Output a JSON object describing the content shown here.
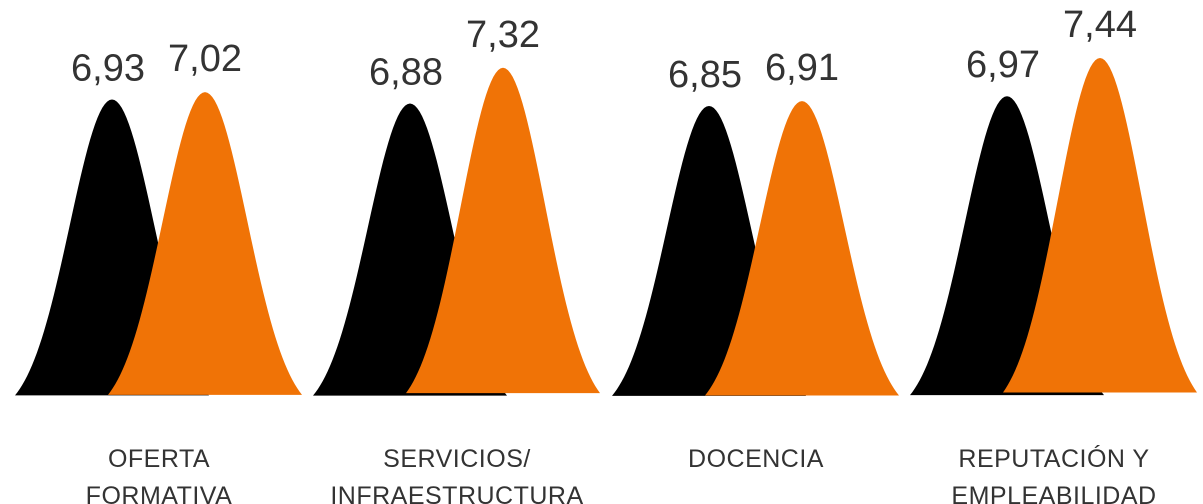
{
  "colors": {
    "series_a": "#000000",
    "series_b": "#F07306",
    "text": "#333333"
  },
  "chart_data": {
    "type": "area",
    "title": "",
    "xlabel": "",
    "ylabel": "",
    "grid": false,
    "legend": "none",
    "categories": [
      {
        "lines": [
          "OFERTA",
          "FORMATIVA"
        ]
      },
      {
        "lines": [
          "SERVICIOS/",
          "INFRAESTRUCTURA"
        ]
      },
      {
        "lines": [
          "DOCENCIA"
        ]
      },
      {
        "lines": [
          "REPUTACIÓN Y",
          "EMPLEABILIDAD"
        ]
      }
    ],
    "series": [
      {
        "values": [
          6.93,
          6.88,
          6.85,
          6.97
        ],
        "labels": [
          "6,93",
          "6,88",
          "6,85",
          "6,97"
        ]
      },
      {
        "values": [
          7.02,
          7.32,
          6.91,
          7.44
        ],
        "labels": [
          "7,02",
          "7,32",
          "6,91",
          "7,44"
        ]
      }
    ]
  }
}
